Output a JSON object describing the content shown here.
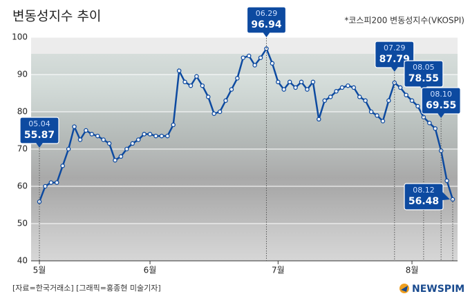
{
  "chart_data": {
    "type": "line",
    "title": "변동성지수 추이",
    "subtitle": "*코스피200 변동성지수(VKOSPI)",
    "source": "[자료=한국거래소] [그래픽=홍종현 미술기자]",
    "logo": "NEWSPIM",
    "categories": [
      "5월",
      null,
      null,
      null,
      null,
      null,
      null,
      null,
      null,
      null,
      null,
      null,
      null,
      null,
      null,
      null,
      null,
      null,
      null,
      "6월",
      null,
      null,
      null,
      null,
      null,
      null,
      null,
      null,
      null,
      null,
      null,
      null,
      null,
      null,
      null,
      null,
      null,
      null,
      null,
      null,
      null,
      "7월",
      null,
      null,
      null,
      null,
      null,
      null,
      null,
      null,
      null,
      null,
      null,
      null,
      null,
      null,
      null,
      null,
      null,
      null,
      null,
      null,
      null,
      null,
      "8월",
      null,
      null,
      null,
      null,
      null,
      null,
      null
    ],
    "series": [
      {
        "name": "VKOSPI",
        "color": "#0d4aa0",
        "values": [
          55.87,
          60,
          61,
          61,
          65.5,
          70,
          76,
          72.5,
          75,
          74,
          73.5,
          72.5,
          71.5,
          67,
          68,
          70,
          71.5,
          72.5,
          74,
          74,
          73.5,
          73.5,
          73.5,
          76.5,
          91,
          88,
          87,
          89.5,
          87,
          84,
          79.5,
          80,
          83,
          86,
          89,
          94.5,
          95,
          92.5,
          94.5,
          96.94,
          93,
          88,
          86,
          88,
          86.5,
          88,
          86,
          88,
          78,
          83,
          84,
          85.5,
          86.5,
          87,
          86.5,
          84,
          83,
          80,
          79,
          77.5,
          83,
          87.79,
          86.5,
          84.5,
          83,
          81.5,
          78.55,
          77,
          75.5,
          69.55,
          61.5,
          56.48
        ],
        "point_labels": [
          "05.04",
          null,
          null,
          null,
          null,
          null,
          null,
          null,
          null,
          null,
          null,
          null,
          null,
          null,
          null,
          null,
          null,
          null,
          null,
          null,
          null,
          null,
          null,
          null,
          null,
          null,
          null,
          null,
          null,
          null,
          null,
          null,
          null,
          null,
          null,
          null,
          null,
          null,
          null,
          "06.29",
          null,
          null,
          null,
          null,
          null,
          null,
          null,
          null,
          null,
          null,
          null,
          null,
          null,
          null,
          null,
          null,
          null,
          null,
          null,
          null,
          null,
          "07.29",
          null,
          null,
          null,
          null,
          "08.05",
          null,
          null,
          "08.10",
          null,
          "08.12"
        ]
      }
    ],
    "ylim": [
      40,
      100
    ],
    "yticks": [
      40,
      50,
      60,
      70,
      80,
      90,
      100
    ],
    "grid": true
  }
}
